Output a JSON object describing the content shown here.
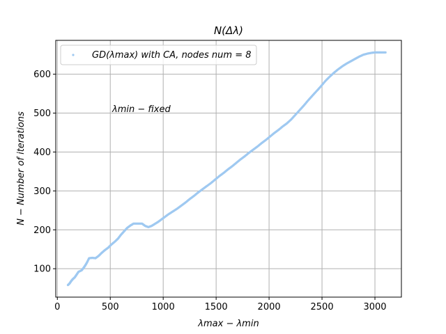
{
  "chart_data": {
    "type": "scatter",
    "title": "N(Δλ)",
    "xlabel": "λmax − λmin",
    "ylabel": "N − Number of iterations",
    "xlim": [
      -15,
      3250
    ],
    "ylim": [
      27,
      687
    ],
    "xticks": [
      0,
      500,
      1000,
      1500,
      2000,
      2500,
      3000
    ],
    "yticks": [
      100,
      200,
      300,
      400,
      500,
      600
    ],
    "grid": true,
    "legend_position": "upper-left",
    "annotation": "λmin − fixed",
    "series": [
      {
        "name": "GD(λmax) with CA, nodes num = 8",
        "color": "#9fc9f1",
        "points": [
          [
            100,
            58
          ],
          [
            115,
            62
          ],
          [
            130,
            68
          ],
          [
            145,
            73
          ],
          [
            165,
            78
          ],
          [
            180,
            84
          ],
          [
            200,
            92
          ],
          [
            230,
            96
          ],
          [
            250,
            103
          ],
          [
            265,
            109
          ],
          [
            280,
            116
          ],
          [
            300,
            127
          ],
          [
            330,
            128
          ],
          [
            360,
            127
          ],
          [
            390,
            133
          ],
          [
            420,
            141
          ],
          [
            450,
            148
          ],
          [
            480,
            154
          ],
          [
            510,
            162
          ],
          [
            545,
            170
          ],
          [
            575,
            178
          ],
          [
            600,
            187
          ],
          [
            630,
            196
          ],
          [
            660,
            205
          ],
          [
            690,
            211
          ],
          [
            720,
            216
          ],
          [
            760,
            216
          ],
          [
            800,
            216
          ],
          [
            830,
            210
          ],
          [
            860,
            207
          ],
          [
            890,
            210
          ],
          [
            920,
            215
          ],
          [
            950,
            220
          ],
          [
            980,
            226
          ],
          [
            1010,
            232
          ],
          [
            1050,
            240
          ],
          [
            1090,
            247
          ],
          [
            1130,
            254
          ],
          [
            1170,
            262
          ],
          [
            1210,
            270
          ],
          [
            1250,
            279
          ],
          [
            1290,
            287
          ],
          [
            1330,
            296
          ],
          [
            1370,
            304
          ],
          [
            1410,
            312
          ],
          [
            1450,
            320
          ],
          [
            1490,
            329
          ],
          [
            1530,
            338
          ],
          [
            1570,
            346
          ],
          [
            1610,
            355
          ],
          [
            1650,
            363
          ],
          [
            1690,
            372
          ],
          [
            1730,
            381
          ],
          [
            1770,
            389
          ],
          [
            1810,
            398
          ],
          [
            1850,
            406
          ],
          [
            1890,
            414
          ],
          [
            1930,
            423
          ],
          [
            1970,
            431
          ],
          [
            2010,
            440
          ],
          [
            2050,
            449
          ],
          [
            2090,
            457
          ],
          [
            2130,
            466
          ],
          [
            2170,
            474
          ],
          [
            2210,
            484
          ],
          [
            2250,
            496
          ],
          [
            2290,
            508
          ],
          [
            2330,
            520
          ],
          [
            2370,
            533
          ],
          [
            2410,
            545
          ],
          [
            2450,
            557
          ],
          [
            2490,
            569
          ],
          [
            2530,
            582
          ],
          [
            2570,
            593
          ],
          [
            2610,
            603
          ],
          [
            2650,
            612
          ],
          [
            2690,
            620
          ],
          [
            2730,
            627
          ],
          [
            2770,
            633
          ],
          [
            2810,
            639
          ],
          [
            2850,
            645
          ],
          [
            2890,
            650
          ],
          [
            2930,
            653
          ],
          [
            2970,
            655
          ],
          [
            3000,
            656
          ],
          [
            3030,
            656
          ],
          [
            3060,
            656
          ],
          [
            3100,
            656
          ]
        ]
      }
    ]
  }
}
